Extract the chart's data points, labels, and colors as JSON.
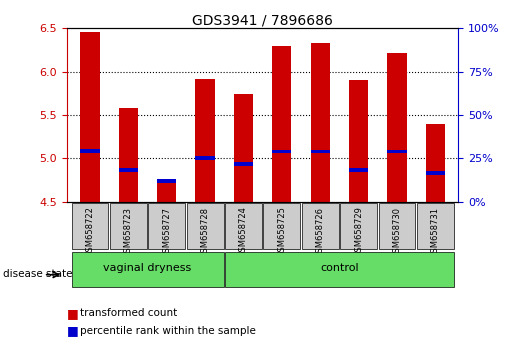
{
  "title": "GDS3941 / 7896686",
  "samples": [
    "GSM658722",
    "GSM658723",
    "GSM658727",
    "GSM658728",
    "GSM658724",
    "GSM658725",
    "GSM658726",
    "GSM658729",
    "GSM658730",
    "GSM658731"
  ],
  "transformed_count": [
    6.46,
    5.58,
    4.72,
    5.92,
    5.74,
    6.3,
    6.33,
    5.9,
    6.22,
    5.4
  ],
  "percentile_rank": [
    5.09,
    4.87,
    4.74,
    5.0,
    4.94,
    5.08,
    5.08,
    4.87,
    5.08,
    4.83
  ],
  "bar_bottom": 4.5,
  "ylim": [
    4.5,
    6.5
  ],
  "y2lim": [
    0,
    100
  ],
  "y2ticks": [
    0,
    25,
    50,
    75,
    100
  ],
  "y2ticklabels": [
    "0%",
    "25%",
    "50%",
    "75%",
    "100%"
  ],
  "yticks": [
    4.5,
    5.0,
    5.5,
    6.0,
    6.5
  ],
  "bar_color": "#cc0000",
  "percentile_color": "#0000cc",
  "group1_label": "vaginal dryness",
  "group2_label": "control",
  "group_bg_color": "#66dd66",
  "disease_state_label": "disease state",
  "left_axis_color": "#cc0000",
  "right_axis_color": "#0000cc",
  "legend_red_label": "transformed count",
  "legend_blue_label": "percentile rank within the sample",
  "grid_color": "black",
  "tick_label_bg": "#cccccc",
  "background_color": "#ffffff"
}
